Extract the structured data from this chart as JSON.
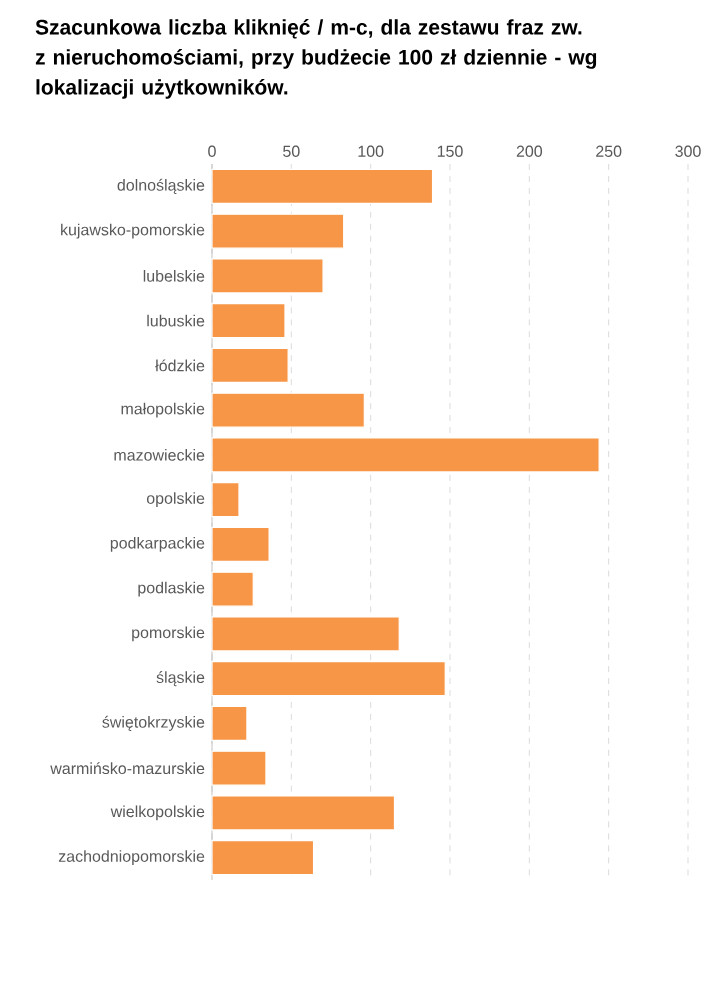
{
  "chart_data": {
    "type": "bar",
    "orientation": "horizontal",
    "title": "Szacunkowa liczba kliknięć / m-c, dla zestawu fraz zw. z nieruchomościami, przy budżecie 100 zł dziennie - wg lokalizacji użytkowników.",
    "categories": [
      "dolnośląskie",
      "kujawsko-pomorskie",
      "lubelskie",
      "lubuskie",
      "łódzkie",
      "małopolskie",
      "mazowieckie",
      "opolskie",
      "podkarpackie",
      "podlaskie",
      "pomorskie",
      "śląskie",
      "świętokrzyskie",
      "warmińsko-mazurskie",
      "wielkopolskie",
      "zachodniopomorskie"
    ],
    "values": [
      139,
      83,
      70,
      46,
      48,
      96,
      244,
      17,
      36,
      26,
      118,
      147,
      22,
      34,
      115,
      64
    ],
    "color": "#f79646",
    "xlim": [
      0,
      300
    ],
    "xticks": [
      0,
      50,
      100,
      150,
      200,
      250,
      300
    ],
    "grid": "x"
  }
}
